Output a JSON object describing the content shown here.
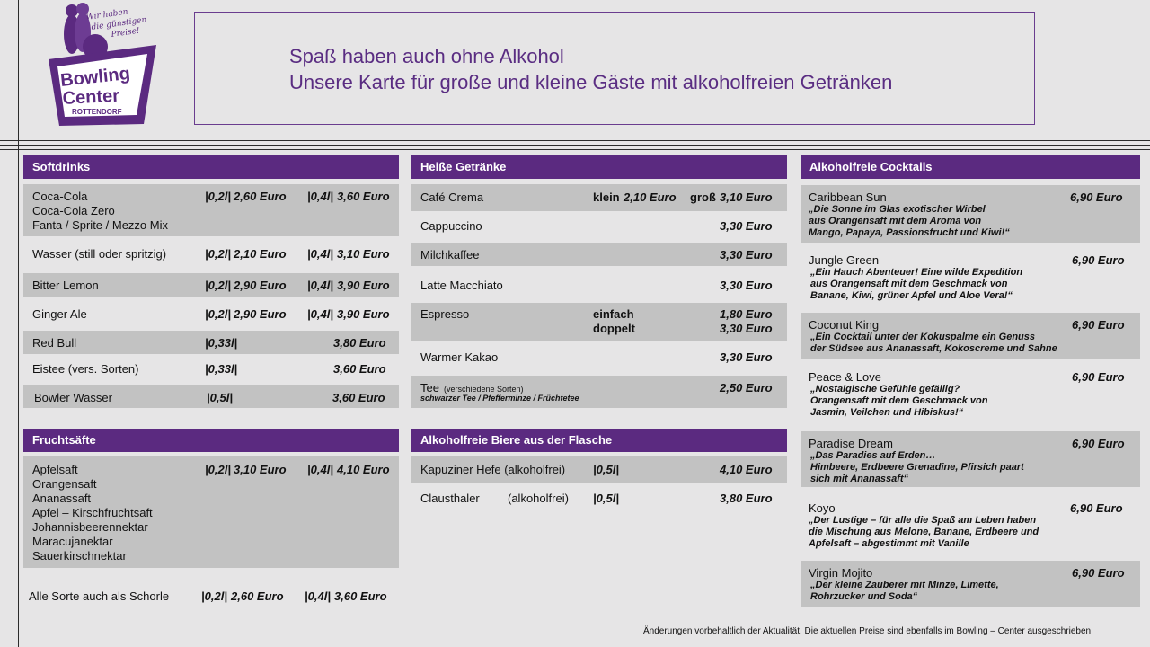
{
  "logo": {
    "slogan_1": "Wir haben",
    "slogan_2": "die günstigen",
    "slogan_3": "Preise!",
    "name_1": "Bowling",
    "name_2": "Center",
    "place": "ROTTENDORF"
  },
  "title": {
    "line1": "Spaß haben auch ohne Alkohol",
    "line2": "Unsere Karte für große und kleine Gäste mit alkoholfreien Getränken"
  },
  "softdrinks": {
    "header": "Softdrinks",
    "r1": {
      "n1": "Coca-Cola",
      "n2": "Coca-Cola Zero",
      "n3": "Fanta / Sprite / Mezzo Mix",
      "s1": "|0,2l|",
      "p1": "2,60 Euro",
      "s2": "|0,4l|",
      "p2": "3,60 Euro"
    },
    "r2": {
      "n": "Wasser (still oder spritzig)",
      "s1": "|0,2l|",
      "p1": "2,10 Euro",
      "s2": "|0,4l|",
      "p2": "3,10 Euro"
    },
    "r3": {
      "n": "Bitter Lemon",
      "s1": "|0,2l|",
      "p1": "2,90 Euro",
      "s2": "|0,4l|",
      "p2": "3,90 Euro"
    },
    "r4": {
      "n": "Ginger Ale",
      "s1": "|0,2l|",
      "p1": "2,90 Euro",
      "s2": "|0,4l|",
      "p2": "3,90 Euro"
    },
    "r5": {
      "n": "Red Bull",
      "s": "|0,33l|",
      "p": "3,80 Euro"
    },
    "r6": {
      "n": "Eistee (vers. Sorten)",
      "s": "|0,33l|",
      "p": "3,60 Euro"
    },
    "r7": {
      "n": "Bowler Wasser",
      "s": "|0,5l|",
      "p": "3,60 Euro"
    }
  },
  "fruit": {
    "header": "Fruchtsäfte",
    "items": [
      "Apfelsaft",
      "Orangensaft",
      "Ananassaft",
      "Apfel – Kirschfruchtsaft",
      "Johannisbeerennektar",
      "Maracujanektar",
      "Sauerkirschnektar"
    ],
    "s1": "|0,2l|",
    "p1": "3,10 Euro",
    "s2": "|0,4l|",
    "p2": "4,10 Euro",
    "schorle": {
      "n": "Alle Sorte auch als Schorle",
      "s1": "|0,2l|",
      "p1": "2,60 Euro",
      "s2": "|0,4l|",
      "p2": "3,60 Euro"
    }
  },
  "hot": {
    "header": "Heiße Getränke",
    "crema": {
      "n": "Café Crema",
      "k": "klein",
      "kp": "2,10 Euro",
      "g": "groß",
      "gp": "3,10 Euro"
    },
    "cappuccino": {
      "n": "Cappuccino",
      "p": "3,30 Euro"
    },
    "milch": {
      "n": "Milchkaffee",
      "p": "3,30 Euro"
    },
    "latte": {
      "n": "Latte Macchiato",
      "p": "3,30 Euro"
    },
    "espresso": {
      "n": "Espresso",
      "e": "einfach",
      "ep": "1,80 Euro",
      "d": "doppelt",
      "dp": "3,30 Euro"
    },
    "kakao": {
      "n": "Warmer Kakao",
      "p": "3,30 Euro"
    },
    "tee": {
      "n": "Tee",
      "note": "(verschiedene Sorten)",
      "sub": "schwarzer Tee / Pfefferminze / Früchtetee",
      "p": "2,50 Euro"
    }
  },
  "beer": {
    "header": "Alkoholfreie Biere aus der Flasche",
    "r1": {
      "n": "Kapuziner Hefe (alkoholfrei)",
      "s": "|0,5l|",
      "p": "4,10 Euro"
    },
    "r2": {
      "n": "Clausthaler",
      "a": "(alkoholfrei)",
      "s": "|0,5l|",
      "p": "3,80 Euro"
    }
  },
  "cocktails": {
    "header": "Alkoholfreie Cocktails",
    "c1": {
      "n": "Caribbean Sun",
      "p": "6,90 Euro",
      "d1": "„Die Sonne im Glas exotischer Wirbel",
      "d2": "aus Orangensaft mit dem Aroma von",
      "d3": "Mango, Papaya, Passionsfrucht und Kiwi!“"
    },
    "c2": {
      "n": "Jungle Green",
      "p": "6,90 Euro",
      "d1": "„Ein Hauch Abenteuer! Eine wilde Expedition",
      "d2": "aus Orangensaft mit dem Geschmack von",
      "d3": "Banane, Kiwi, grüner Apfel und Aloe Vera!“"
    },
    "c3": {
      "n": "Coconut King",
      "p": "6,90 Euro",
      "d1": "„Ein Cocktail unter der Kokuspalme ein Genuss",
      "d2": "der Südsee aus Ananassaft, Kokoscreme und Sahne"
    },
    "c4": {
      "n": "Peace & Love",
      "p": "6,90 Euro",
      "d1": "„Nostalgische Gefühle gefällig?",
      "d2": "Orangensaft mit dem Geschmack von",
      "d3": "Jasmin, Veilchen und Hibiskus!“"
    },
    "c5": {
      "n": "Paradise Dream",
      "p": "6,90 Euro",
      "d1": "„Das Paradies auf Erden…",
      "d2": "Himbeere, Erdbeere Grenadine, Pfirsich paart",
      "d3": "sich mit Ananassaft“"
    },
    "c6": {
      "n": "Koyo",
      "p": "6,90 Euro",
      "d1": "„Der Lustige – für alle die Spaß am Leben haben",
      "d2": " die Mischung aus Melone, Banane, Erdbeere und",
      "d3": "Apfelsaft – abgestimmt mit Vanille"
    },
    "c7": {
      "n": "Virgin Mojito",
      "p": "6,90 Euro",
      "d1": "„Der kleine Zauberer mit Minze, Limette,",
      "d2": "Rohrzucker und Soda“"
    }
  },
  "footer": "Änderungen vorbehaltlich der Aktualität. Die aktuellen Preise sind ebenfalls im Bowling – Center ausgeschrieben"
}
